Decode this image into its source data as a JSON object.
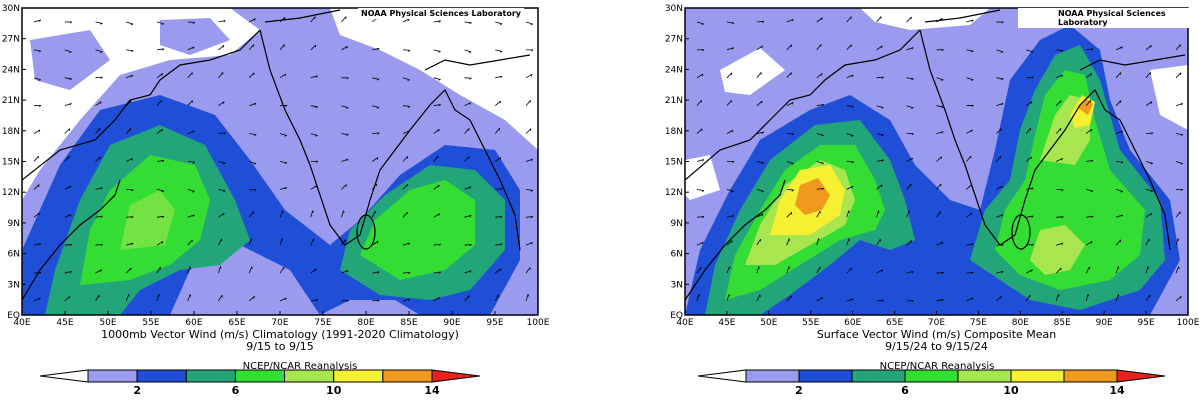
{
  "panels": [
    {
      "credit": "NOAA Physical Sciences Laboratory",
      "title_line1": "1000mb Vector Wind (m/s) Climatology (1991-2020 Climatology)",
      "title_line2": "9/15   to 9/15",
      "source": "NCEP/NCAR Reanalysis"
    },
    {
      "credit": "NOAA Physical Sciences Laboratory",
      "title_line1": "Surface Vector Wind (m/s) Composite Mean",
      "title_line2": "9/15/24   to 9/15/24",
      "source": "NCEP/NCAR Reanalysis"
    }
  ],
  "axes": {
    "lat_ticks": [
      "30N",
      "27N",
      "24N",
      "21N",
      "18N",
      "15N",
      "12N",
      "9N",
      "6N",
      "3N",
      "EQ"
    ],
    "lon_ticks": [
      "40E",
      "45E",
      "50E",
      "55E",
      "60E",
      "65E",
      "70E",
      "75E",
      "80E",
      "85E",
      "90E",
      "95E",
      "100E"
    ]
  },
  "colorbar": {
    "labels": [
      "2",
      "6",
      "10",
      "14"
    ],
    "colors": [
      "#ffffff",
      "#9a9aee",
      "#1f4fd6",
      "#23a57a",
      "#33dd33",
      "#a8e650",
      "#f5f032",
      "#ef9a1c",
      "#e82020"
    ]
  },
  "palette": {
    "white": "#ffffff",
    "lavender": "#9a9aee",
    "blue": "#1f4fd6",
    "teal": "#23a57a",
    "green": "#33dd33",
    "lightgreen": "#a8e650",
    "yellow": "#f5f032",
    "orange": "#ef9a1c",
    "red": "#e82020"
  }
}
